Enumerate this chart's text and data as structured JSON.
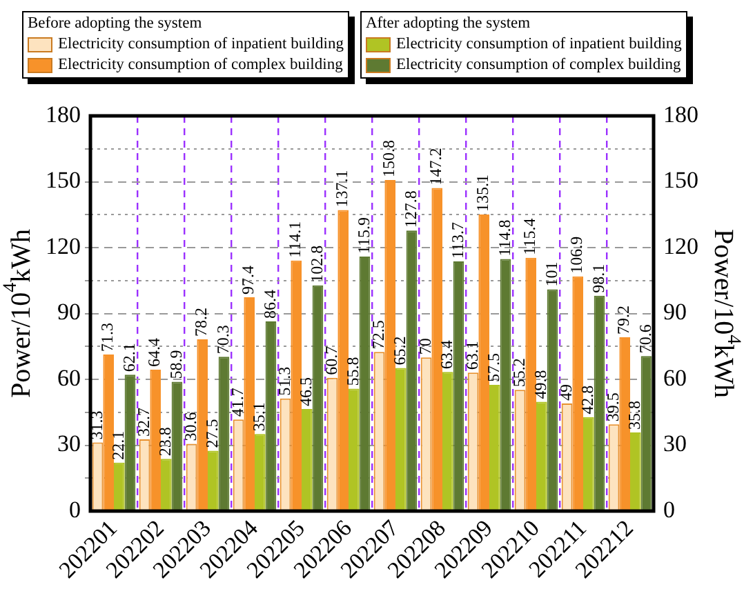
{
  "chart_data": {
    "type": "bar",
    "categories": [
      "202201",
      "202202",
      "202203",
      "202204",
      "202205",
      "202206",
      "202207",
      "202208",
      "202209",
      "202210",
      "202211",
      "202212"
    ],
    "series": [
      {
        "name": "Electricity consumption of inpatient building",
        "color": "#fde3bf",
        "values": [
          31.3,
          32.7,
          30.6,
          41.7,
          51.3,
          60.7,
          72.5,
          70,
          63.1,
          55.2,
          49,
          39.5
        ]
      },
      {
        "name": "Electricity consumption of complex building",
        "color": "#f7922a",
        "values": [
          71.3,
          64.4,
          78.2,
          97.4,
          114.1,
          137.1,
          150.8,
          147.2,
          135.1,
          115.4,
          106.9,
          79.2
        ]
      },
      {
        "name": "Electricity consumption of inpatient building",
        "color": "#b0c424",
        "values": [
          22.1,
          23.8,
          27.5,
          35.1,
          46.5,
          55.8,
          65.2,
          63.4,
          57.5,
          49.8,
          42.8,
          35.8
        ]
      },
      {
        "name": "Electricity consumption of complex building",
        "color": "#5e7a32",
        "values": [
          62.1,
          58.9,
          70.3,
          86.4,
          102.8,
          115.9,
          127.8,
          113.7,
          114.8,
          101,
          98.1,
          70.6
        ]
      }
    ],
    "annotations": [
      "Before adopting the system",
      "After adopting the system"
    ],
    "ylabel": "Power/10$^{4}$kWh",
    "y2label": "Power/10$^{4}$kWh",
    "ylim": [
      0,
      180
    ],
    "yticks": [
      0,
      {
        "value": 15,
        "label": null
      },
      30,
      {
        "value": 45,
        "label": null
      },
      60,
      {
        "value": 75,
        "label": null
      },
      90,
      {
        "value": 105,
        "label": null
      },
      120,
      {
        "value": 135,
        "label": null
      },
      150,
      {
        "value": 165,
        "label": null
      },
      180
    ],
    "y2lim": [
      0,
      180
    ],
    "y2ticks": [
      0,
      30,
      60,
      90,
      120,
      150,
      180
    ],
    "grid": true,
    "legend": "top",
    "data_labels": true
  }
}
